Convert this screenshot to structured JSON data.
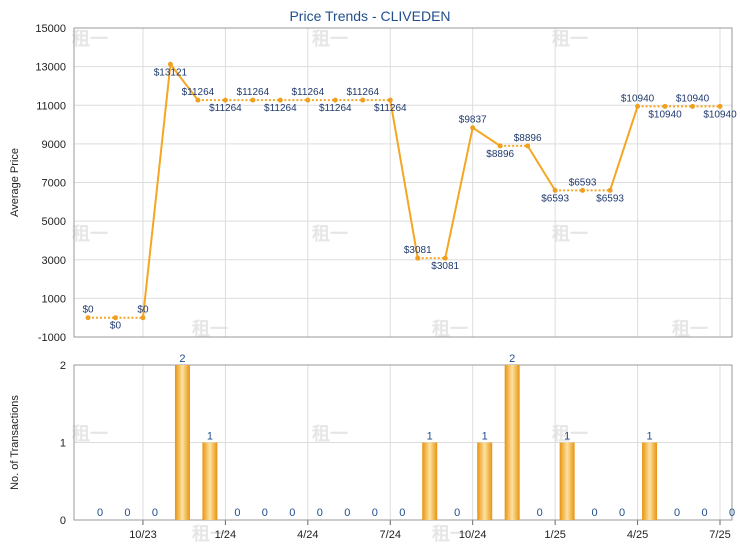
{
  "chart_data": [
    {
      "type": "line",
      "title": "Price Trends - CLIVEDEN",
      "ylabel": "Average Price",
      "ylim": [
        -1000,
        15000
      ],
      "yticks": [
        -1000,
        1000,
        3000,
        5000,
        7000,
        9000,
        11000,
        13000,
        15000
      ],
      "grid": true,
      "color": "#f5a623",
      "x": [
        "2023-08",
        "2023-09",
        "2023-10",
        "2023-11",
        "2023-12",
        "2024-01",
        "2024-02",
        "2024-03",
        "2024-04",
        "2024-05",
        "2024-06",
        "2024-07",
        "2024-08",
        "2024-09",
        "2024-10",
        "2024-11",
        "2024-12",
        "2025-01",
        "2025-02",
        "2025-03",
        "2025-04",
        "2025-05",
        "2025-06",
        "2025-07"
      ],
      "values": [
        0,
        0,
        0,
        13121,
        11264,
        11264,
        11264,
        11264,
        11264,
        11264,
        11264,
        11264,
        3081,
        3081,
        9837,
        8896,
        8896,
        6593,
        6593,
        6593,
        10940,
        10940,
        10940,
        10940
      ],
      "labels": [
        "$0",
        "$0",
        "$0",
        "$13121",
        "$11264",
        "$11264",
        "$11264",
        "$11264",
        "$11264",
        "$11264",
        "$11264",
        "$11264",
        "$3081",
        "$3081",
        "$9837",
        "$8896",
        "$8896",
        "$6593",
        "$6593",
        "$6593",
        "$10940",
        "$10940",
        "$10940",
        "$10940"
      ]
    },
    {
      "type": "bar",
      "ylabel": "No. of Transactions",
      "ylim": [
        0,
        2
      ],
      "yticks": [
        0,
        1,
        2
      ],
      "grid": true,
      "color": "#f5a623",
      "x": [
        "2023-08",
        "2023-09",
        "2023-10",
        "2023-11",
        "2023-12",
        "2024-01",
        "2024-02",
        "2024-03",
        "2024-04",
        "2024-05",
        "2024-06",
        "2024-07",
        "2024-08",
        "2024-09",
        "2024-10",
        "2024-11",
        "2024-12",
        "2025-01",
        "2025-02",
        "2025-03",
        "2025-04",
        "2025-05",
        "2025-06",
        "2025-07"
      ],
      "values": [
        0,
        0,
        0,
        2,
        1,
        0,
        0,
        0,
        0,
        0,
        0,
        0,
        1,
        0,
        1,
        2,
        0,
        1,
        0,
        0,
        1,
        0,
        0,
        0
      ],
      "xtick_labels": [
        "10/23",
        "1/24",
        "4/24",
        "7/24",
        "10/24",
        "1/25",
        "4/25",
        "7/25"
      ],
      "xtick_index": [
        2,
        5,
        8,
        11,
        14,
        17,
        20,
        23
      ]
    }
  ],
  "watermark": "租一"
}
